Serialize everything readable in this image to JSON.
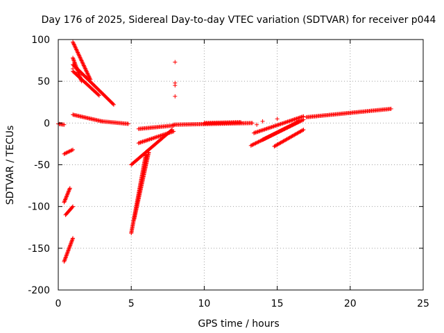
{
  "chart_data": {
    "type": "scatter",
    "title": "Day 176 of 2025, Sidereal Day-to-day VTEC variation (SDTVAR) for receiver p044",
    "xlabel": "GPS time / hours",
    "ylabel": "SDTVAR / TECUs",
    "xlim": [
      0,
      25
    ],
    "ylim": [
      -200,
      100
    ],
    "x_ticks": [
      0,
      5,
      10,
      15,
      20,
      25
    ],
    "y_ticks": [
      100,
      50,
      0,
      -50,
      -100,
      -150,
      -200
    ],
    "x_tick_labels": [
      "0",
      "5",
      "10",
      "15",
      "20",
      "25"
    ],
    "y_tick_labels": [
      "100",
      "50",
      "0",
      "-50",
      "-100",
      "-150",
      "-200"
    ],
    "grid": true,
    "marker": "+",
    "series": [
      {
        "name": "SDTVAR",
        "color": "#ff0000",
        "tracks": [
          {
            "from": [
              0.0,
              -1
            ],
            "to": [
              0.4,
              -2
            ]
          },
          {
            "from": [
              0.4,
              -37
            ],
            "to": [
              1.0,
              -32
            ]
          },
          {
            "from": [
              0.4,
              -95
            ],
            "to": [
              0.8,
              -78
            ]
          },
          {
            "from": [
              0.5,
              -110
            ],
            "to": [
              1.0,
              -100
            ]
          },
          {
            "from": [
              0.4,
              -166
            ],
            "to": [
              1.0,
              -138
            ]
          },
          {
            "from": [
              1.0,
              97
            ],
            "to": [
              2.2,
              52
            ]
          },
          {
            "from": [
              1.0,
              78
            ],
            "to": [
              1.6,
              50
            ]
          },
          {
            "from": [
              1.0,
              70
            ],
            "to": [
              3.8,
              22
            ]
          },
          {
            "from": [
              1.0,
              62
            ],
            "to": [
              2.8,
              33
            ]
          },
          {
            "from": [
              1.0,
              10
            ],
            "to": [
              3.0,
              2
            ]
          },
          {
            "from": [
              3.0,
              2
            ],
            "to": [
              4.8,
              -1
            ]
          },
          {
            "from": [
              5.0,
              -50
            ],
            "to": [
              7.8,
              -8
            ]
          },
          {
            "from": [
              5.0,
              -132
            ],
            "to": [
              6.0,
              -38
            ]
          },
          {
            "from": [
              5.2,
              -115
            ],
            "to": [
              6.2,
              -35
            ]
          },
          {
            "from": [
              5.5,
              -24
            ],
            "to": [
              7.9,
              -10
            ]
          },
          {
            "from": [
              5.5,
              -7
            ],
            "to": [
              7.9,
              -3
            ]
          },
          {
            "from": [
              7.9,
              -2
            ],
            "to": [
              13.3,
              0
            ]
          },
          {
            "from": [
              10.0,
              0
            ],
            "to": [
              12.5,
              1
            ]
          },
          {
            "from": [
              13.2,
              -27
            ],
            "to": [
              16.8,
              4
            ]
          },
          {
            "from": [
              13.4,
              -12
            ],
            "to": [
              16.8,
              8
            ]
          },
          {
            "from": [
              14.0,
              -20
            ],
            "to": [
              16.5,
              2
            ]
          },
          {
            "from": [
              14.8,
              -28
            ],
            "to": [
              16.8,
              -8
            ]
          },
          {
            "from": [
              17.0,
              7
            ],
            "to": [
              22.8,
              17
            ]
          }
        ],
        "points": [
          {
            "x": 8.0,
            "y": 73
          },
          {
            "x": 8.0,
            "y": 48
          },
          {
            "x": 8.0,
            "y": 45
          },
          {
            "x": 8.0,
            "y": 32
          },
          {
            "x": 14.0,
            "y": 2
          },
          {
            "x": 15.0,
            "y": 5
          },
          {
            "x": 13.6,
            "y": -2
          },
          {
            "x": 1.0,
            "y": 65
          }
        ]
      }
    ]
  }
}
